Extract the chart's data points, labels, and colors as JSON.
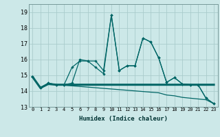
{
  "title": "",
  "xlabel": "Humidex (Indice chaleur)",
  "background_color": "#cce8e8",
  "grid_color": "#aacccc",
  "line_color": "#006666",
  "x": [
    0,
    1,
    2,
    3,
    4,
    5,
    6,
    7,
    8,
    9,
    10,
    11,
    12,
    13,
    14,
    15,
    16,
    17,
    18,
    19,
    20,
    21,
    22,
    23
  ],
  "series_spiky": [
    14.9,
    14.2,
    14.5,
    14.4,
    14.4,
    15.5,
    15.9,
    15.9,
    15.9,
    15.3,
    18.8,
    15.3,
    15.6,
    15.6,
    17.35,
    17.1,
    16.1,
    14.55,
    14.85,
    14.45,
    14.4,
    14.4,
    13.55,
    13.2
  ],
  "series_spiky2": [
    14.9,
    14.2,
    14.5,
    14.4,
    14.4,
    14.5,
    16.0,
    15.9,
    15.5,
    15.1,
    18.8,
    15.3,
    15.6,
    15.6,
    17.35,
    17.1,
    16.1,
    14.55,
    14.85,
    14.45,
    14.4,
    14.4,
    13.55,
    13.2
  ],
  "series_flat": [
    14.9,
    14.2,
    14.45,
    14.4,
    14.4,
    14.4,
    14.4,
    14.4,
    14.4,
    14.4,
    14.4,
    14.4,
    14.4,
    14.4,
    14.4,
    14.4,
    14.4,
    14.4,
    14.4,
    14.4,
    14.4,
    14.4,
    14.4,
    14.4
  ],
  "series_decline": [
    14.9,
    14.2,
    14.45,
    14.4,
    14.37,
    14.33,
    14.29,
    14.25,
    14.21,
    14.17,
    14.13,
    14.09,
    14.05,
    14.01,
    13.97,
    13.93,
    13.89,
    13.75,
    13.7,
    13.6,
    13.55,
    13.5,
    13.45,
    13.2
  ],
  "ylim": [
    13.0,
    19.5
  ],
  "yticks": [
    13,
    14,
    15,
    16,
    17,
    18,
    19
  ],
  "xticks": [
    0,
    1,
    2,
    3,
    4,
    5,
    6,
    7,
    8,
    9,
    10,
    11,
    12,
    13,
    14,
    15,
    16,
    17,
    18,
    19,
    20,
    21,
    22,
    23
  ]
}
